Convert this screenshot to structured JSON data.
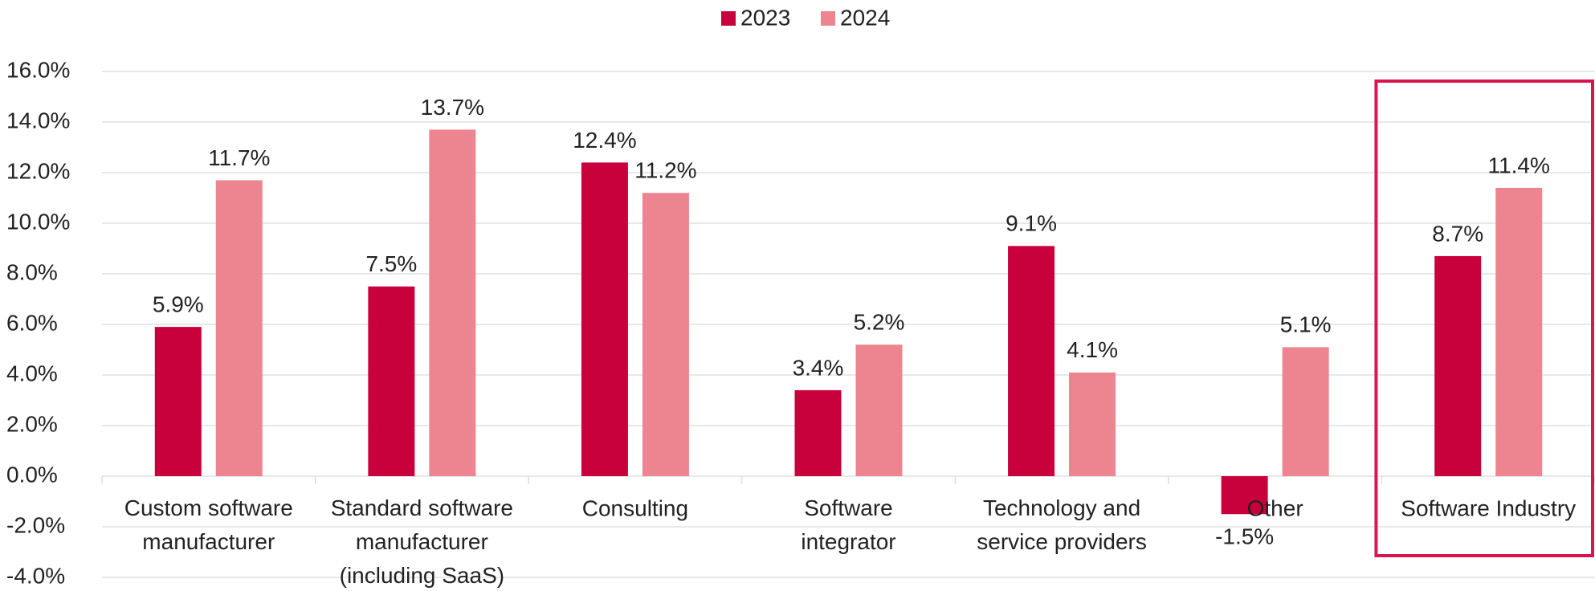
{
  "chart_data": {
    "type": "bar",
    "categories": [
      "Custom software\nmanufacturer",
      "Standard software\nmanufacturer\n(including SaaS)",
      "Consulting",
      "Software\nintegrator",
      "Technology and\nservice providers",
      "Other",
      "Software Industry"
    ],
    "series": [
      {
        "name": "2023",
        "color": "#c8003c",
        "values": [
          5.9,
          7.5,
          12.4,
          3.4,
          9.1,
          -1.5,
          8.7
        ],
        "value_labels": [
          "5.9%",
          "7.5%",
          "12.4%",
          "3.4%",
          "9.1%",
          "-1.5%",
          "8.7%"
        ]
      },
      {
        "name": "2024",
        "color": "#ec8590",
        "values": [
          11.7,
          13.7,
          11.2,
          5.2,
          4.1,
          5.1,
          11.4
        ],
        "value_labels": [
          "11.7%",
          "13.7%",
          "11.2%",
          "5.2%",
          "4.1%",
          "5.1%",
          "11.4%"
        ]
      }
    ],
    "ylim": [
      -4,
      16
    ],
    "yticks": [
      {
        "value": -4,
        "label": "-4.0%"
      },
      {
        "value": -2,
        "label": "-2.0%"
      },
      {
        "value": 0,
        "label": "0.0%"
      },
      {
        "value": 2,
        "label": "2.0%"
      },
      {
        "value": 4,
        "label": "4.0%"
      },
      {
        "value": 6,
        "label": "6.0%"
      },
      {
        "value": 8,
        "label": "8.0%"
      },
      {
        "value": 10,
        "label": "10.0%"
      },
      {
        "value": 12,
        "label": "12.0%"
      },
      {
        "value": 14,
        "label": "14.0%"
      },
      {
        "value": 16,
        "label": "16.0%"
      }
    ],
    "grid": true,
    "legend": "top"
  }
}
